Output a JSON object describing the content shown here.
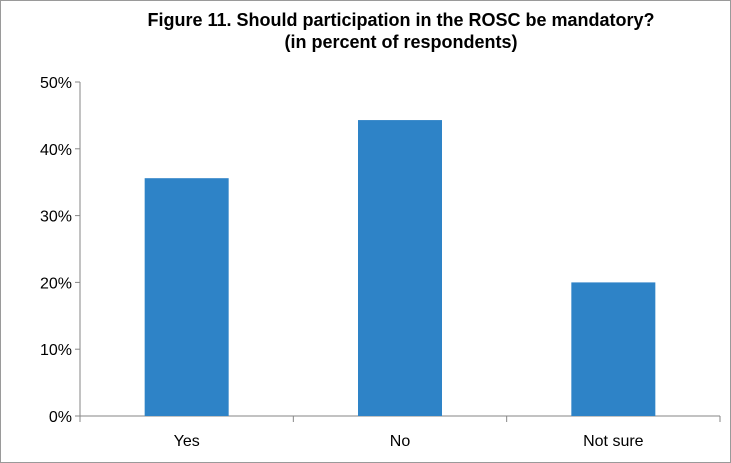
{
  "chart_data": {
    "type": "bar",
    "title": "Figure 11. Should participation in the ROSC be mandatory?",
    "subtitle": "(in percent of respondents)",
    "categories": [
      "Yes",
      "No",
      "Not sure"
    ],
    "values": [
      35.6,
      44.3,
      20.0
    ],
    "ylim": [
      0,
      50
    ],
    "yticks": [
      "0%",
      "10%",
      "20%",
      "30%",
      "40%",
      "50%"
    ],
    "xlabel": "",
    "ylabel": "",
    "bar_color": "#2E83C7",
    "grid": false,
    "legend": "none"
  }
}
